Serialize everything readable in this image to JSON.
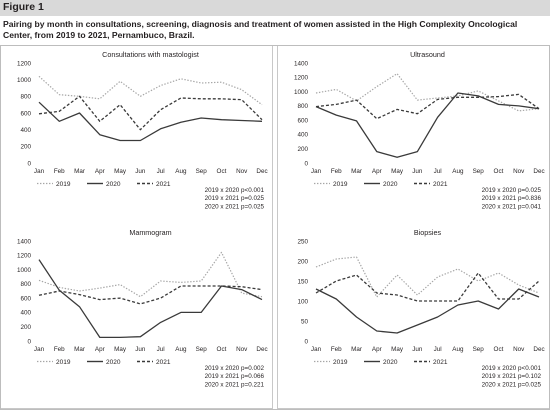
{
  "figure": {
    "title": "Figure 1",
    "caption": "Pairing by month in consultations, screening, diagnosis and treatment of women assisted in the High Complexity Oncological Center, from 2019 to 2021, Pernambuco, Brazil."
  },
  "style": {
    "header_bg": "#d9d9d9",
    "color_2019": "#a6a6a6",
    "color_2020": "#3a3a3a",
    "color_2021": "#3a3a3a"
  },
  "chart_data": [
    {
      "type": "line",
      "title": "Consultations with mastologist",
      "categories": [
        "Jan",
        "Feb",
        "Mar",
        "Apr",
        "May",
        "Jun",
        "Jul",
        "Aug",
        "Sep",
        "Oct",
        "Nov",
        "Dec"
      ],
      "ylim": [
        0,
        1200
      ],
      "yticks": [
        0,
        200,
        400,
        600,
        800,
        1000,
        1200
      ],
      "grid": false,
      "legend_position": "bottom-left",
      "series": [
        {
          "name": "2019",
          "style": "dotted",
          "values": [
            1040,
            820,
            800,
            770,
            980,
            800,
            930,
            1010,
            960,
            970,
            880,
            700
          ]
        },
        {
          "name": "2020",
          "style": "solid",
          "values": [
            730,
            500,
            600,
            340,
            270,
            270,
            410,
            490,
            540,
            520,
            510,
            500
          ]
        },
        {
          "name": "2021",
          "style": "dashed",
          "values": [
            590,
            620,
            800,
            500,
            700,
            400,
            640,
            780,
            770,
            770,
            760,
            520
          ]
        }
      ],
      "annotations": [
        "2019 x 2020 p<0.001",
        "2019 x 2021 p=0.025",
        "2020 x 2021 p=0.025"
      ]
    },
    {
      "type": "line",
      "title": "Ultrasound",
      "categories": [
        "Jan",
        "Feb",
        "Mar",
        "Apr",
        "May",
        "Jun",
        "Jul",
        "Aug",
        "Sep",
        "Oct",
        "Nov",
        "Dec"
      ],
      "ylim": [
        0,
        1400
      ],
      "yticks": [
        0,
        200,
        400,
        600,
        800,
        1000,
        1200,
        1400
      ],
      "grid": false,
      "legend_position": "bottom-left",
      "series": [
        {
          "name": "2019",
          "style": "dotted",
          "values": [
            980,
            1030,
            870,
            1070,
            1250,
            880,
            910,
            940,
            1010,
            870,
            730,
            760
          ]
        },
        {
          "name": "2020",
          "style": "solid",
          "values": [
            790,
            670,
            590,
            160,
            80,
            160,
            640,
            980,
            940,
            820,
            800,
            760
          ]
        },
        {
          "name": "2021",
          "style": "dashed",
          "values": [
            790,
            820,
            880,
            620,
            750,
            690,
            890,
            920,
            920,
            930,
            960,
            760
          ]
        }
      ],
      "annotations": [
        "2019 x 2020 p=0.025",
        "2019 x 2021 p=0.836",
        "2020 x 2021 p=0.041"
      ]
    },
    {
      "type": "line",
      "title": "Mammogram",
      "categories": [
        "Jan",
        "Feb",
        "Mar",
        "Apr",
        "May",
        "Jun",
        "Jul",
        "Aug",
        "Sep",
        "Oct",
        "Nov",
        "Dec"
      ],
      "ylim": [
        0,
        1400
      ],
      "yticks": [
        0,
        200,
        400,
        600,
        800,
        1000,
        1200,
        1400
      ],
      "grid": false,
      "legend_position": "bottom-left",
      "series": [
        {
          "name": "2019",
          "style": "dotted",
          "values": [
            850,
            750,
            700,
            740,
            790,
            620,
            840,
            820,
            840,
            1240,
            670,
            620
          ]
        },
        {
          "name": "2020",
          "style": "solid",
          "values": [
            1140,
            710,
            480,
            50,
            50,
            60,
            260,
            400,
            400,
            770,
            720,
            580
          ]
        },
        {
          "name": "2021",
          "style": "dashed",
          "values": [
            640,
            700,
            650,
            580,
            600,
            520,
            600,
            770,
            770,
            770,
            760,
            720
          ]
        }
      ],
      "annotations": [
        "2019 x 2020 p=0.002",
        "2019 x 2021 p=0.066",
        "2020 x 2021 p=0.221"
      ]
    },
    {
      "type": "line",
      "title": "Biopsies",
      "categories": [
        "Jan",
        "Feb",
        "Mar",
        "Apr",
        "May",
        "Jun",
        "Jul",
        "Aug",
        "Sep",
        "Oct",
        "Nov",
        "Dec"
      ],
      "ylim": [
        0,
        250
      ],
      "yticks": [
        0,
        50,
        100,
        150,
        200,
        250
      ],
      "grid": false,
      "legend_position": "bottom-left",
      "series": [
        {
          "name": "2019",
          "style": "dotted",
          "values": [
            185,
            205,
            210,
            110,
            165,
            115,
            160,
            180,
            150,
            170,
            140,
            120
          ]
        },
        {
          "name": "2020",
          "style": "solid",
          "values": [
            130,
            105,
            60,
            25,
            20,
            40,
            60,
            90,
            100,
            80,
            130,
            110
          ]
        },
        {
          "name": "2021",
          "style": "dashed",
          "values": [
            120,
            150,
            165,
            120,
            115,
            100,
            100,
            100,
            170,
            105,
            105,
            150
          ]
        }
      ],
      "annotations": [
        "2019 x 2020 p<0.001",
        "2019 x 2021 p=0.102",
        "2020 x 2021 p=0.025"
      ]
    }
  ]
}
